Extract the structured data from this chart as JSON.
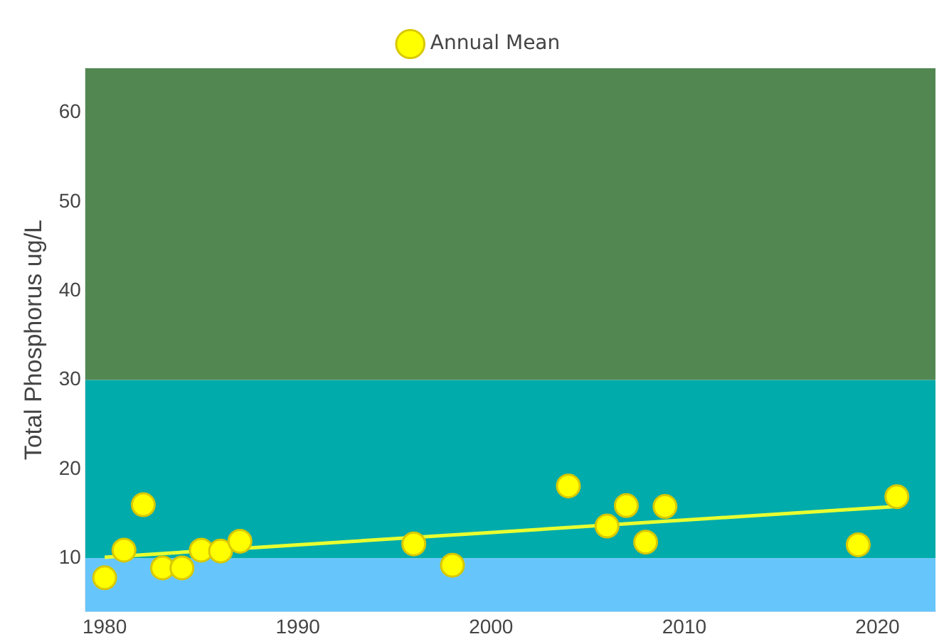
{
  "chart_data": {
    "type": "scatter",
    "ylabel": "Total Phosphorus ug/L",
    "xlim": [
      1979,
      2023
    ],
    "xticks": [
      1980,
      1990,
      2000,
      2010,
      2020
    ],
    "ylim": [
      4,
      65
    ],
    "yticks": [
      10,
      20,
      30,
      40,
      50,
      60
    ],
    "grid": false,
    "legend": "top",
    "marker": "circle",
    "bands": [
      {
        "axis": "y",
        "from": 4,
        "to": 10,
        "color": "#66c6fc"
      },
      {
        "axis": "y",
        "from": 10,
        "to": 30,
        "color": "#00abab"
      },
      {
        "axis": "y",
        "from": 30,
        "to": 65,
        "color": "#528752"
      }
    ],
    "series": [
      {
        "name": "Annual Mean",
        "color": "#ffff00",
        "x": [
          1980,
          1981,
          1982,
          1983,
          1984,
          1985,
          1986,
          1987,
          1996,
          1998,
          2004,
          2006,
          2007,
          2008,
          2009,
          2019,
          2021
        ],
        "values": [
          7.8,
          10.9,
          16,
          8.9,
          8.9,
          10.9,
          10.8,
          11.9,
          11.6,
          9.2,
          18.1,
          13.6,
          15.9,
          11.8,
          15.8,
          11.5,
          16.9
        ]
      },
      {
        "type": "line",
        "color": "#e8ff30",
        "x": [
          1980,
          2021
        ],
        "values": [
          10.1,
          15.8
        ],
        "marker": "none"
      }
    ]
  }
}
